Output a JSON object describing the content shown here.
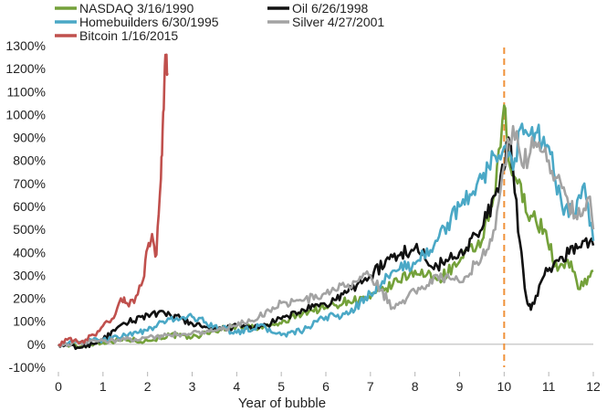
{
  "chart_data": {
    "type": "line",
    "title": "",
    "xlabel": "Year of bubble",
    "ylabel": "",
    "xlim": [
      0,
      12
    ],
    "ylim": [
      -100,
      1300
    ],
    "x_ticks": [
      "0",
      "1",
      "2",
      "3",
      "4",
      "5",
      "6",
      "7",
      "8",
      "9",
      "10",
      "11",
      "12"
    ],
    "y_ticks": [
      "-100%",
      "0%",
      "100%",
      "200%",
      "300%",
      "400%",
      "500%",
      "600%",
      "700%",
      "800%",
      "900%",
      "1000%",
      "1100%",
      "1200%",
      "1300%"
    ],
    "grid": false,
    "legend_position": "top-left",
    "reference_line": {
      "x": 10,
      "style": "dashed",
      "color": "#f0923a"
    },
    "series": [
      {
        "name": "NASDAQ 3/16/1990",
        "color": "#74a13a",
        "points": [
          [
            0,
            0
          ],
          [
            0.5,
            -10
          ],
          [
            1,
            10
          ],
          [
            1.5,
            20
          ],
          [
            2,
            15
          ],
          [
            2.5,
            40
          ],
          [
            3,
            30
          ],
          [
            3.5,
            60
          ],
          [
            4,
            80
          ],
          [
            4.5,
            70
          ],
          [
            5,
            90
          ],
          [
            5.5,
            140
          ],
          [
            6,
            160
          ],
          [
            6.5,
            190
          ],
          [
            7,
            200
          ],
          [
            7.5,
            260
          ],
          [
            8,
            320
          ],
          [
            8.5,
            280
          ],
          [
            9,
            360
          ],
          [
            9.5,
            450
          ],
          [
            9.8,
            650
          ],
          [
            10,
            1040
          ],
          [
            10.1,
            800
          ],
          [
            10.3,
            700
          ],
          [
            10.6,
            560
          ],
          [
            10.9,
            500
          ],
          [
            11.2,
            320
          ],
          [
            11.5,
            360
          ],
          [
            11.7,
            240
          ],
          [
            12,
            320
          ]
        ]
      },
      {
        "name": "Oil 6/26/1998",
        "color": "#111111",
        "points": [
          [
            0,
            0
          ],
          [
            0.5,
            -15
          ],
          [
            1,
            20
          ],
          [
            1.5,
            90
          ],
          [
            2,
            130
          ],
          [
            2.5,
            130
          ],
          [
            3,
            90
          ],
          [
            3.5,
            60
          ],
          [
            4,
            80
          ],
          [
            4.5,
            70
          ],
          [
            5,
            110
          ],
          [
            5.5,
            150
          ],
          [
            6,
            170
          ],
          [
            6.5,
            230
          ],
          [
            7,
            300
          ],
          [
            7.5,
            380
          ],
          [
            8,
            420
          ],
          [
            8.5,
            340
          ],
          [
            9,
            400
          ],
          [
            9.5,
            500
          ],
          [
            9.8,
            650
          ],
          [
            10,
            760
          ],
          [
            10.1,
            900
          ],
          [
            10.2,
            760
          ],
          [
            10.35,
            450
          ],
          [
            10.5,
            200
          ],
          [
            10.6,
            150
          ],
          [
            10.9,
            300
          ],
          [
            11.3,
            380
          ],
          [
            11.8,
            450
          ],
          [
            12,
            430
          ]
        ]
      },
      {
        "name": "Homebuilders 6/30/1995",
        "color": "#4aa8c6",
        "points": [
          [
            0,
            0
          ],
          [
            0.5,
            10
          ],
          [
            1,
            20
          ],
          [
            1.5,
            40
          ],
          [
            2,
            60
          ],
          [
            2.5,
            110
          ],
          [
            3,
            120
          ],
          [
            3.5,
            80
          ],
          [
            4,
            50
          ],
          [
            4.5,
            80
          ],
          [
            5,
            40
          ],
          [
            5.5,
            60
          ],
          [
            6,
            120
          ],
          [
            6.5,
            130
          ],
          [
            7,
            220
          ],
          [
            7.5,
            320
          ],
          [
            8,
            350
          ],
          [
            8.5,
            450
          ],
          [
            9,
            600
          ],
          [
            9.5,
            720
          ],
          [
            9.8,
            820
          ],
          [
            10,
            860
          ],
          [
            10.2,
            760
          ],
          [
            10.4,
            960
          ],
          [
            10.7,
            920
          ],
          [
            11,
            860
          ],
          [
            11.3,
            600
          ],
          [
            11.6,
            560
          ],
          [
            11.8,
            700
          ],
          [
            12,
            450
          ]
        ]
      },
      {
        "name": "Silver 4/27/2001",
        "color": "#a3a3a3",
        "points": [
          [
            0,
            0
          ],
          [
            0.5,
            5
          ],
          [
            1,
            15
          ],
          [
            1.5,
            20
          ],
          [
            2,
            30
          ],
          [
            2.5,
            40
          ],
          [
            3,
            50
          ],
          [
            3.5,
            60
          ],
          [
            4,
            80
          ],
          [
            4.5,
            120
          ],
          [
            5,
            180
          ],
          [
            5.5,
            190
          ],
          [
            6,
            220
          ],
          [
            6.5,
            260
          ],
          [
            7,
            300
          ],
          [
            7.5,
            160
          ],
          [
            8,
            230
          ],
          [
            8.5,
            300
          ],
          [
            9,
            270
          ],
          [
            9.5,
            380
          ],
          [
            9.8,
            500
          ],
          [
            10,
            780
          ],
          [
            10.2,
            950
          ],
          [
            10.4,
            780
          ],
          [
            10.7,
            880
          ],
          [
            11,
            800
          ],
          [
            11.3,
            680
          ],
          [
            11.6,
            560
          ],
          [
            11.9,
            640
          ],
          [
            12,
            500
          ]
        ]
      },
      {
        "name": "Bitcoin 1/16/2015",
        "color": "#c0504d",
        "points": [
          [
            0,
            0
          ],
          [
            0.2,
            20
          ],
          [
            0.5,
            10
          ],
          [
            0.8,
            40
          ],
          [
            1,
            80
          ],
          [
            1.2,
            110
          ],
          [
            1.4,
            200
          ],
          [
            1.5,
            180
          ],
          [
            1.7,
            180
          ],
          [
            1.9,
            280
          ],
          [
            2,
            420
          ],
          [
            2.1,
            480
          ],
          [
            2.2,
            390
          ],
          [
            2.3,
            720
          ],
          [
            2.35,
            1010
          ],
          [
            2.4,
            1260
          ],
          [
            2.45,
            1180
          ]
        ]
      }
    ]
  }
}
